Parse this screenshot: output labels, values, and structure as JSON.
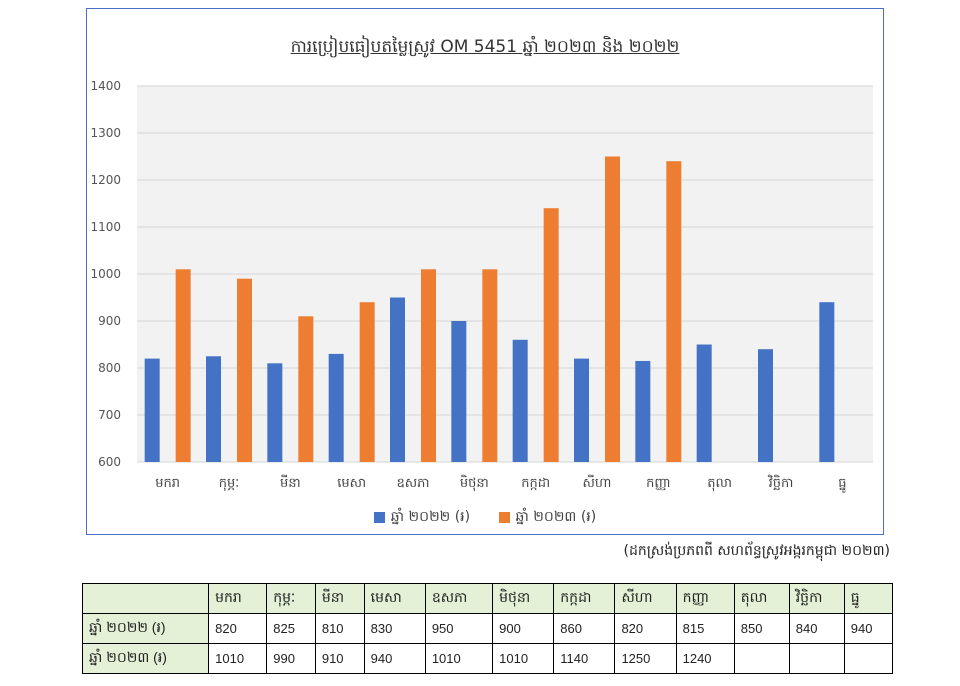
{
  "chart_data": {
    "type": "bar",
    "title": "ការប្រៀបធៀបតម្លៃស្រូវ OM 5451 ឆ្នាំ ២០២៣ និង ២០២២",
    "categories": [
      "មករា",
      "កុម្ភៈ",
      "មីនា",
      "មេសា",
      "ឧសភា",
      "មិថុនា",
      "កក្កដា",
      "សីហា",
      "កញ្ញា",
      "តុលា",
      "វិច្ឆិកា",
      "ធ្នូ"
    ],
    "series": [
      {
        "name": "ឆ្នាំ ២០២២ (៛)",
        "color": "#4472c4",
        "values": [
          820,
          825,
          810,
          830,
          950,
          900,
          860,
          820,
          815,
          850,
          840,
          940
        ]
      },
      {
        "name": "ឆ្នាំ ២០២៣ (៛)",
        "color": "#ed7d31",
        "values": [
          1010,
          990,
          910,
          940,
          1010,
          1010,
          1140,
          1250,
          1240,
          null,
          null,
          null
        ]
      }
    ],
    "ylim": [
      600,
      1400
    ],
    "yticks": [
      600,
      700,
      800,
      900,
      1000,
      1100,
      1200,
      1300,
      1400
    ],
    "grid": true,
    "legend_position": "bottom"
  },
  "source_note": "(ដកស្រង់ប្រភពពី សហព័ន្ធស្រូវអង្ករកម្ពុជា ២០២៣)",
  "table": {
    "headers": [
      "មករា",
      "កុម្ភៈ",
      "មីនា",
      "មេសា",
      "ឧសភា",
      "មិថុនា",
      "កក្កដា",
      "សីហា",
      "កញ្ញា",
      "តុលា",
      "វិច្ឆិកា",
      "ធ្នូ"
    ],
    "rows": [
      {
        "label": "ឆ្នាំ ២០២២ (៛)",
        "cells": [
          "820",
          "825",
          "810",
          "830",
          "950",
          "900",
          "860",
          "820",
          "815",
          "850",
          "840",
          "940"
        ]
      },
      {
        "label": "ឆ្នាំ ២០២៣ (៛)",
        "cells": [
          "1010",
          "990",
          "910",
          "940",
          "1010",
          "1010",
          "1140",
          "1250",
          "1240",
          "",
          "",
          ""
        ]
      }
    ]
  }
}
